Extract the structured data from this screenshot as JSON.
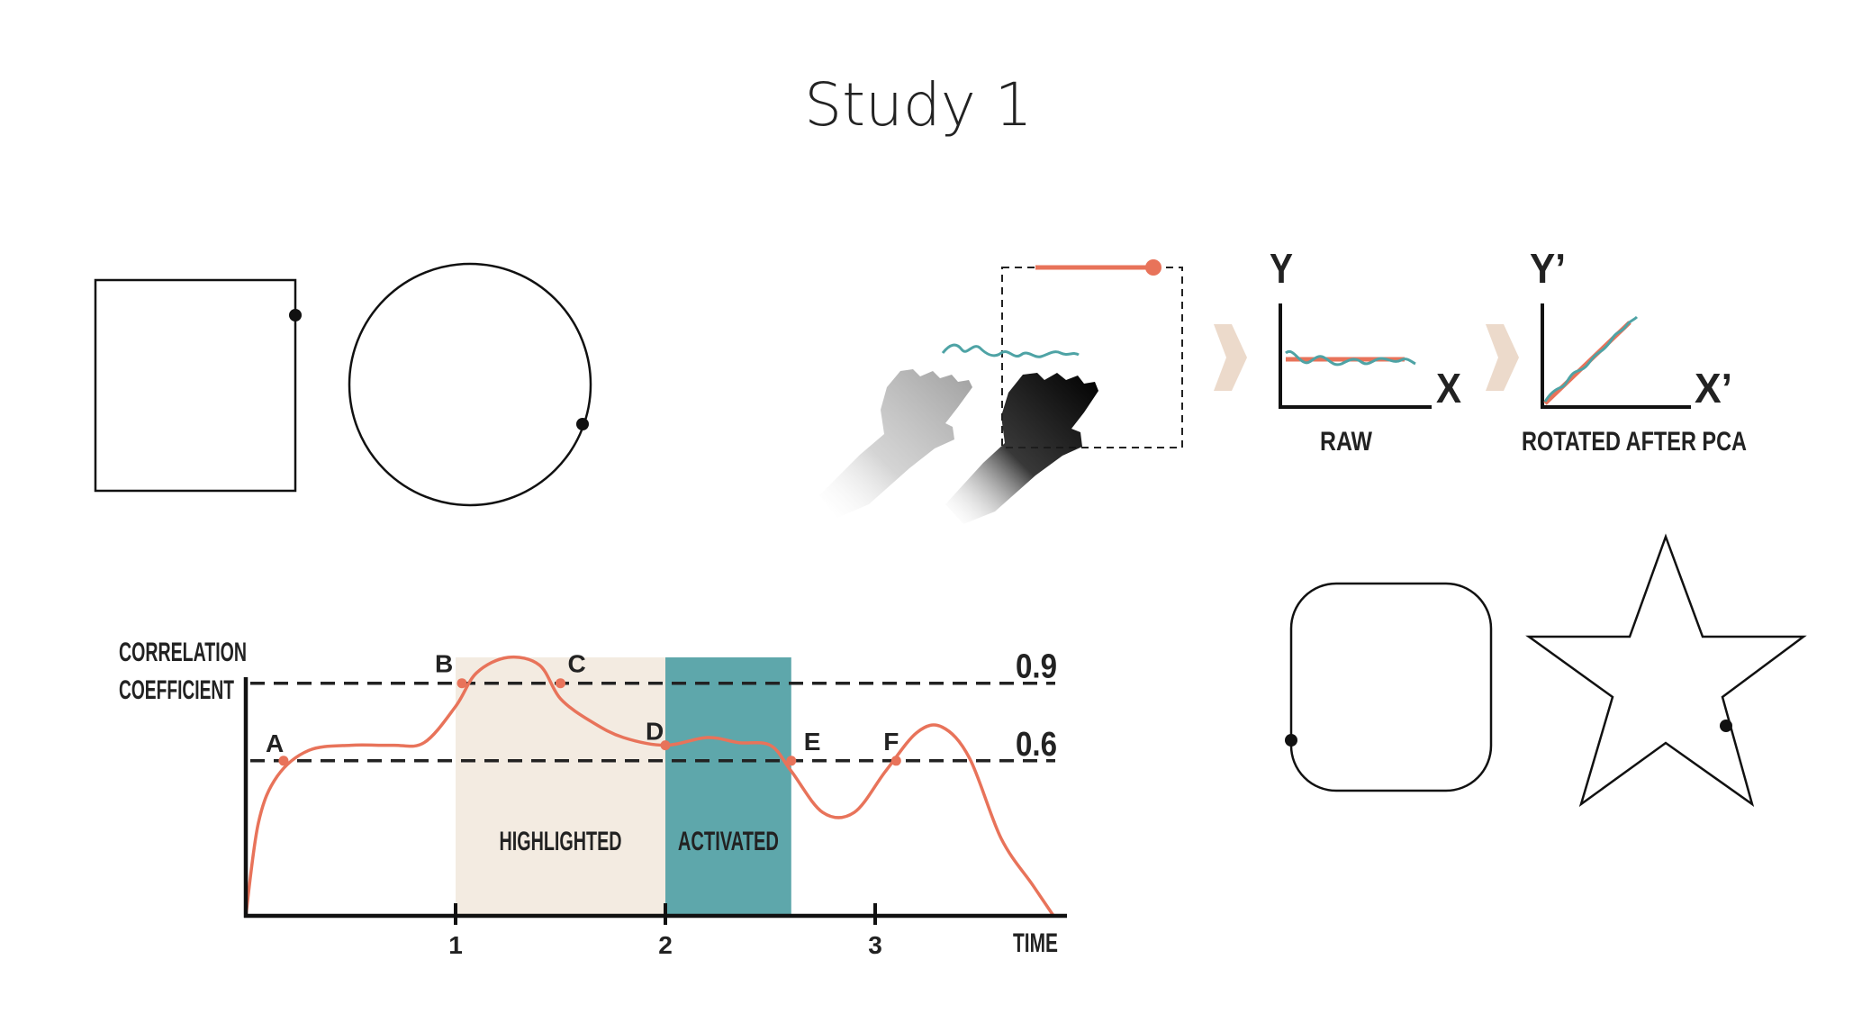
{
  "slide": {
    "title": "Study 1"
  },
  "colors": {
    "trace": "#e8735a",
    "teal": "#4ea3a5",
    "highlight_band": "#f3ebe1",
    "activated_band": "#5ea7ab",
    "arrow": "#ecdacb",
    "ink": "#111111"
  },
  "pca_diagram": {
    "raw": {
      "y_label": "Y",
      "x_label": "X",
      "caption": "RAW"
    },
    "rotated": {
      "y_label": "Y’",
      "x_label": "X’",
      "caption": "ROTATED AFTER PCA"
    }
  },
  "shapes": [
    "square",
    "circle",
    "rounded-square",
    "star"
  ],
  "chart_data": {
    "type": "line",
    "ylabel_lines": [
      "CORRELATION",
      "COEFFICIENT"
    ],
    "xlabel": "TIME",
    "x_ticks": [
      "1",
      "2",
      "3"
    ],
    "thresholds": [
      {
        "value": 0.9,
        "label": "0.9"
      },
      {
        "value": 0.6,
        "label": "0.6"
      }
    ],
    "ylim": [
      0,
      1.0
    ],
    "xlim": [
      0,
      3.9
    ],
    "bands": [
      {
        "label": "HIGHLIGHTED",
        "x_start": 1.0,
        "x_end": 2.0
      },
      {
        "label": "ACTIVATED",
        "x_start": 2.0,
        "x_end": 2.6
      }
    ],
    "series": [
      {
        "x": [
          0,
          0.06,
          0.15,
          0.3,
          0.5,
          0.7,
          0.85,
          1.0,
          1.1,
          1.25,
          1.4,
          1.5,
          1.65,
          1.8,
          2.0,
          2.2,
          2.35,
          2.5,
          2.6,
          2.75,
          2.9,
          3.05,
          3.2,
          3.32,
          3.45,
          3.6,
          3.75,
          3.85
        ],
        "y": [
          0,
          0.36,
          0.54,
          0.64,
          0.66,
          0.66,
          0.67,
          0.81,
          0.94,
          1.0,
          0.97,
          0.84,
          0.75,
          0.69,
          0.66,
          0.69,
          0.67,
          0.66,
          0.56,
          0.4,
          0.4,
          0.56,
          0.71,
          0.73,
          0.61,
          0.3,
          0.12,
          0.0
        ]
      }
    ],
    "points": [
      {
        "label": "A",
        "x": 0.18,
        "y": 0.6
      },
      {
        "label": "B",
        "x": 1.03,
        "y": 0.9
      },
      {
        "label": "C",
        "x": 1.5,
        "y": 0.9
      },
      {
        "label": "D",
        "x": 2.0,
        "y": 0.66
      },
      {
        "label": "E",
        "x": 2.6,
        "y": 0.6
      },
      {
        "label": "F",
        "x": 3.1,
        "y": 0.6
      }
    ]
  }
}
